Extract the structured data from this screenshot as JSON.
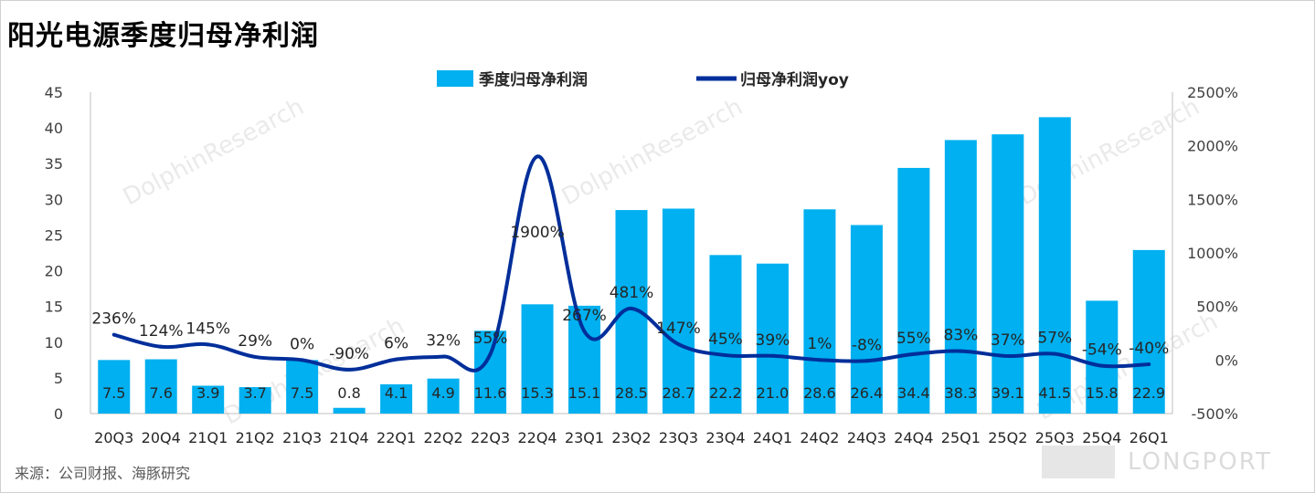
{
  "title": "阳光电源季度归母净利润",
  "source": "来源：公司财报、海豚研究",
  "watermark_text": "DolphinResearch",
  "brand_text": "LONGPORT",
  "chart_data": {
    "type": "bar",
    "title": "阳光电源季度归母净利润",
    "categories": [
      "20Q3",
      "20Q4",
      "21Q1",
      "21Q2",
      "21Q3",
      "21Q4",
      "22Q1",
      "22Q2",
      "22Q3",
      "22Q4",
      "23Q1",
      "23Q2",
      "23Q3",
      "23Q4",
      "24Q1",
      "24Q2",
      "24Q3",
      "24Q4",
      "25Q1",
      "25Q2",
      "25Q3",
      "25Q4",
      "26Q1"
    ],
    "series": [
      {
        "name": "季度归母净利润",
        "type": "bar",
        "axis": "left",
        "color": "#00B0F0",
        "values": [
          7.5,
          7.6,
          3.9,
          3.7,
          7.5,
          0.8,
          4.1,
          4.9,
          11.6,
          15.3,
          15.1,
          28.5,
          28.7,
          22.2,
          21.0,
          28.6,
          26.4,
          34.4,
          38.3,
          39.1,
          41.5,
          15.8,
          22.9
        ],
        "labels": [
          "7.5",
          "7.6",
          "3.9",
          "3.7",
          "7.5",
          "0.8",
          "4.1",
          "4.9",
          "11.6",
          "15.3",
          "15.1",
          "28.5",
          "28.7",
          "22.2",
          "21.0",
          "28.6",
          "26.4",
          "34.4",
          "38.3",
          "39.1",
          "41.5",
          "15.8",
          "22.9"
        ]
      },
      {
        "name": "归母净利润yoy",
        "type": "line",
        "axis": "right",
        "color": "#002E9A",
        "values": [
          236,
          124,
          145,
          29,
          0,
          -90,
          6,
          32,
          55,
          1900,
          267,
          481,
          147,
          45,
          39,
          1,
          -8,
          55,
          83,
          37,
          57,
          -54,
          -40
        ],
        "labels": [
          "236%",
          "124%",
          "145%",
          "29%",
          "0%",
          "-90%",
          "6%",
          "32%",
          "55%",
          "1900%",
          "267%",
          "481%",
          "147%",
          "45%",
          "39%",
          "1%",
          "-8%",
          "55%",
          "83%",
          "37%",
          "57%",
          "-54%",
          "-40%"
        ]
      }
    ],
    "y_left": {
      "min": 0,
      "max": 45,
      "step": 5,
      "ticks": [
        "0",
        "5",
        "10",
        "15",
        "20",
        "25",
        "30",
        "35",
        "40",
        "45"
      ]
    },
    "y_right": {
      "min": -500,
      "max": 2500,
      "step": 500,
      "ticks": [
        "-500%",
        "0%",
        "500%",
        "1000%",
        "1500%",
        "2000%",
        "2500%"
      ]
    },
    "legend": {
      "position": "top-center"
    },
    "grid": false
  }
}
